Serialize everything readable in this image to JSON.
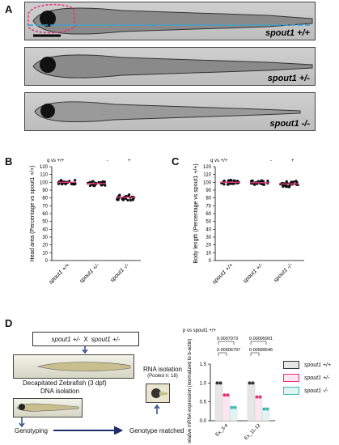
{
  "panel_a": {
    "label": "A",
    "images": [
      {
        "genotype": "spout1 +/+"
      },
      {
        "genotype": "spout1 +/-"
      },
      {
        "genotype": "spout1 -/-"
      }
    ]
  },
  "panel_b": {
    "label": "B",
    "q_label": "q vs +/+",
    "sig": [
      "-",
      "+"
    ]
  },
  "panel_c": {
    "label": "C",
    "q_label": "q vs +/+",
    "sig": [
      "-",
      "+"
    ]
  },
  "panel_d": {
    "label": "D",
    "cross_left": "spout1 +/-",
    "cross_x": "X",
    "cross_right": "spout1 +/-",
    "decap_label": "Decapitated Zebrafish (3 dpf)",
    "dna_label": "DNA isolation",
    "rna_label": "RNA isolation",
    "rna_pooled": "(Pooled n: 18)",
    "genotyping": "Genotyping",
    "genotype_matched": "Genotype matched",
    "p_label": "p vs spout1 +/+",
    "pvals_ex3_4": [
      "0.0007973",
      "0.00606797"
    ],
    "pvals_ex11_12": [
      "0.00095901",
      "0.00589546"
    ],
    "legend": [
      "spout1 +/+",
      "spout1 +/-",
      "spout1 -/-"
    ]
  },
  "colors": {
    "pink": "#e8317a",
    "teal": "#3fb8b0",
    "dark": "#111111",
    "cyan_dash": "#2aa7e0"
  },
  "chart_data": [
    {
      "type": "scatter",
      "ylabel": "Head area (Percentage vs spout1 +/+)",
      "categories": [
        "spout1 +/+",
        "spout1 +/-",
        "spout1 -/-"
      ],
      "means": [
        100,
        98.5,
        81
      ],
      "ylim": [
        0,
        120
      ],
      "yticks": [
        0,
        10,
        20,
        30,
        40,
        50,
        60,
        70,
        80,
        90,
        100,
        110,
        120
      ]
    },
    {
      "type": "scatter",
      "ylabel": "Body length (Percentage vs spout1 +/+)",
      "categories": [
        "spout1 +/+",
        "spout1 +/-",
        "spout1 -/-"
      ],
      "means": [
        100,
        99.5,
        98
      ],
      "ylim": [
        0,
        120
      ],
      "yticks": [
        0,
        10,
        20,
        30,
        40,
        50,
        60,
        70,
        80,
        90,
        100,
        110,
        120
      ]
    },
    {
      "type": "bar",
      "ylabel": "Relative mRNA expression (normalized to b-actin)",
      "categories": [
        "Ex_3-4",
        "Ex_11-12"
      ],
      "series": [
        {
          "name": "spout1 +/+",
          "values": [
            1.0,
            1.0
          ]
        },
        {
          "name": "spout1 +/-",
          "values": [
            0.68,
            0.63
          ]
        },
        {
          "name": "spout1 -/-",
          "values": [
            0.35,
            0.31
          ]
        }
      ],
      "ylim": [
        0,
        1.5
      ],
      "yticks": [
        0.0,
        0.5,
        1.0,
        1.5
      ]
    }
  ]
}
